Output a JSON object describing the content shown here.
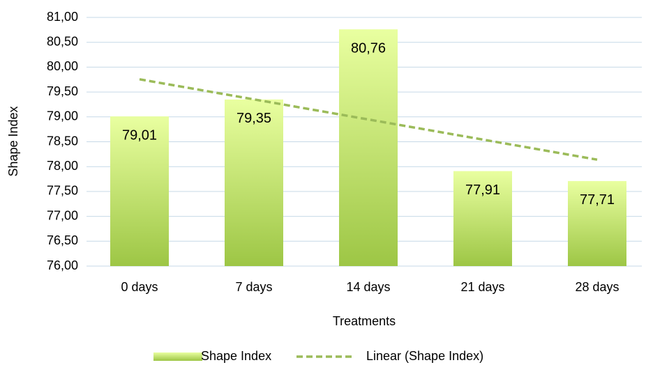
{
  "chart_data": {
    "type": "bar",
    "xlabel": "Treatments",
    "ylabel": "Shape Index",
    "categories": [
      "0 days",
      "7 days",
      "14 days",
      "21 days",
      "28 days"
    ],
    "series": [
      {
        "name": "Shape Index",
        "type": "bar",
        "color": "#9dc645",
        "values": [
          79.01,
          79.35,
          80.76,
          77.91,
          77.71
        ],
        "value_labels": [
          "79,01",
          "79,35",
          "80,76",
          "77,91",
          "77,71"
        ]
      },
      {
        "name": "Linear (Shape Index)",
        "type": "line",
        "color": "#9bbb59",
        "dashed": true,
        "values": [
          79.756,
          79.352,
          78.948,
          78.544,
          78.14
        ]
      }
    ],
    "ylim": [
      76,
      81
    ],
    "yticks": [
      {
        "value": 76,
        "label": "76,00"
      },
      {
        "value": 76.5,
        "label": "76,50"
      },
      {
        "value": 77,
        "label": "77,00"
      },
      {
        "value": 77.5,
        "label": "77,50"
      },
      {
        "value": 78,
        "label": "78,00"
      },
      {
        "value": 78.5,
        "label": "78,50"
      },
      {
        "value": 79,
        "label": "79,00"
      },
      {
        "value": 79.5,
        "label": "79,50"
      },
      {
        "value": 80,
        "label": "80,00"
      },
      {
        "value": 80.5,
        "label": "80,50"
      },
      {
        "value": 81,
        "label": "81,00"
      }
    ],
    "grid": true,
    "legend": "bottom"
  }
}
